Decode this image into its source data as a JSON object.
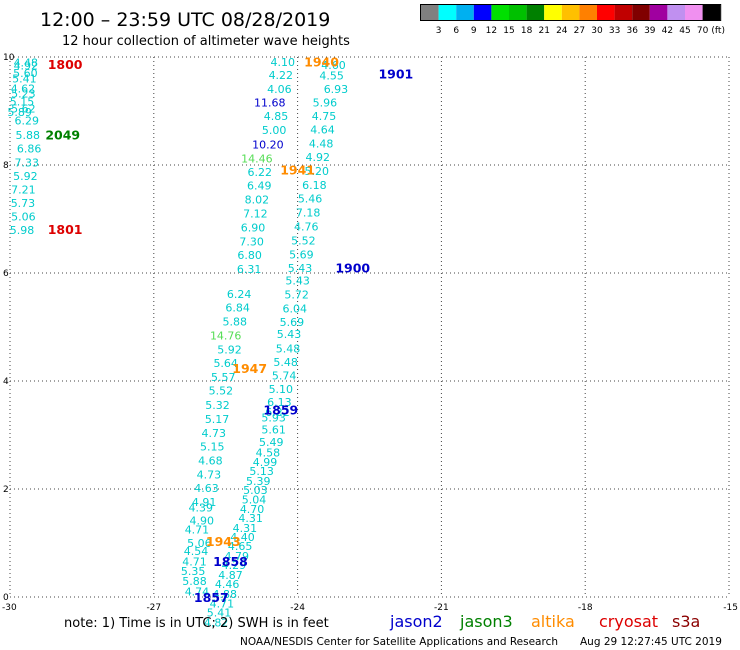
{
  "header": {
    "title": "12:00  –  23:59 UTC 08/28/2019",
    "subtitle": "12 hour collection of altimeter wave heights"
  },
  "colorbar": {
    "labels": [
      "3",
      "6",
      "9",
      "12",
      "15",
      "18",
      "21",
      "24",
      "27",
      "30",
      "33",
      "36",
      "39",
      "42",
      "45",
      "70"
    ],
    "unit": "(ft)",
    "colors": [
      "#808080",
      "#00ffff",
      "#00b0f0",
      "#0000ff",
      "#00e000",
      "#00c000",
      "#008000",
      "#ffff00",
      "#ffc000",
      "#ff8000",
      "#ff0000",
      "#c00000",
      "#800000",
      "#a000a0",
      "#c090f0",
      "#f090f0",
      "#000000"
    ]
  },
  "footer": {
    "note": "note:  1) Time is in UTC;  2) SWH is in feet",
    "satellites": [
      {
        "name": "jason2",
        "color": "#0000cc"
      },
      {
        "name": "jason3",
        "color": "#008000"
      },
      {
        "name": "altika",
        "color": "#ff8c00"
      },
      {
        "name": "cryosat",
        "color": "#dd0000"
      },
      {
        "name": "s3a",
        "color": "#8b0000"
      }
    ],
    "credit": "NOAA/NESDIS Center for Satellite Applications and Research",
    "timestamp": "Aug 29 12:27:45 UTC 2019"
  },
  "chart_data": {
    "type": "scatter",
    "xlim": [
      -30,
      -15
    ],
    "ylim": [
      0,
      10
    ],
    "xticks": [
      "-30",
      "-27",
      "-24",
      "-21",
      "-18",
      "-15"
    ],
    "xtick_values": [
      -30,
      -27,
      -24,
      -21,
      -18,
      -15
    ],
    "yticks": [
      "0",
      "2",
      "4",
      "6",
      "8",
      "10"
    ],
    "ytick_values": [
      0,
      2,
      4,
      6,
      8,
      10
    ],
    "grid": true,
    "gridlines": "dotted",
    "points": [
      {
        "x": -29.67,
        "y": 9.9,
        "label": "4.48",
        "color": "#00cccc"
      },
      {
        "x": -29.67,
        "y": 9.84,
        "label": "4.92",
        "color": "#00cccc"
      },
      {
        "x": -29.68,
        "y": 9.7,
        "label": "5.60",
        "color": "#00cccc"
      },
      {
        "x": -29.7,
        "y": 9.6,
        "label": "5.41",
        "color": "#00cccc"
      },
      {
        "x": -29.73,
        "y": 9.42,
        "label": "4.62",
        "color": "#00cccc"
      },
      {
        "x": -29.72,
        "y": 9.32,
        "label": "5.23",
        "color": "#00cccc"
      },
      {
        "x": -29.75,
        "y": 9.18,
        "label": "5.15",
        "color": "#00cccc"
      },
      {
        "x": -29.72,
        "y": 9.05,
        "label": "5.62",
        "color": "#00cccc"
      },
      {
        "x": -29.8,
        "y": 8.98,
        "label": "5.89",
        "color": "#00cccc"
      },
      {
        "x": -29.65,
        "y": 8.82,
        "label": "6.29",
        "color": "#00cccc"
      },
      {
        "x": -29.63,
        "y": 8.56,
        "label": "5.88",
        "color": "#00cccc"
      },
      {
        "x": -29.6,
        "y": 8.31,
        "label": "6.86",
        "color": "#00cccc"
      },
      {
        "x": -29.65,
        "y": 8.05,
        "label": "7.33",
        "color": "#00cccc"
      },
      {
        "x": -29.68,
        "y": 7.8,
        "label": "5.92",
        "color": "#00cccc"
      },
      {
        "x": -29.72,
        "y": 7.55,
        "label": "7.21",
        "color": "#00cccc"
      },
      {
        "x": -29.73,
        "y": 7.3,
        "label": "5.73",
        "color": "#00cccc"
      },
      {
        "x": -29.72,
        "y": 7.05,
        "label": "5.06",
        "color": "#00cccc"
      },
      {
        "x": -29.75,
        "y": 6.8,
        "label": "5.98",
        "color": "#00cccc"
      },
      {
        "x": -24.31,
        "y": 9.91,
        "label": "4.10",
        "color": "#00cccc"
      },
      {
        "x": -24.35,
        "y": 9.67,
        "label": "4.22",
        "color": "#00cccc"
      },
      {
        "x": -24.38,
        "y": 9.41,
        "label": "4.06",
        "color": "#00cccc"
      },
      {
        "x": -24.58,
        "y": 9.16,
        "label": "11.68",
        "color": "#0000cc"
      },
      {
        "x": -24.45,
        "y": 8.91,
        "label": "4.85",
        "color": "#00cccc"
      },
      {
        "x": -24.49,
        "y": 8.65,
        "label": "5.00",
        "color": "#00cccc"
      },
      {
        "x": -24.62,
        "y": 8.38,
        "label": "10.20",
        "color": "#0000cc"
      },
      {
        "x": -24.85,
        "y": 8.12,
        "label": "14.46",
        "color": "#55dd55"
      },
      {
        "x": -24.79,
        "y": 7.87,
        "label": "6.22",
        "color": "#00cccc"
      },
      {
        "x": -24.8,
        "y": 7.62,
        "label": "6.49",
        "color": "#00cccc"
      },
      {
        "x": -24.85,
        "y": 7.36,
        "label": "8.02",
        "color": "#00cccc"
      },
      {
        "x": -24.88,
        "y": 7.1,
        "label": "7.12",
        "color": "#00cccc"
      },
      {
        "x": -24.93,
        "y": 6.84,
        "label": "6.90",
        "color": "#00cccc"
      },
      {
        "x": -24.96,
        "y": 6.58,
        "label": "7.30",
        "color": "#00cccc"
      },
      {
        "x": -25.0,
        "y": 6.33,
        "label": "6.80",
        "color": "#00cccc"
      },
      {
        "x": -25.01,
        "y": 6.07,
        "label": "6.31",
        "color": "#00cccc"
      },
      {
        "x": -25.22,
        "y": 5.61,
        "label": "6.24",
        "color": "#00cccc"
      },
      {
        "x": -25.25,
        "y": 5.36,
        "label": "6.84",
        "color": "#00cccc"
      },
      {
        "x": -25.31,
        "y": 5.1,
        "label": "5.88",
        "color": "#00cccc"
      },
      {
        "x": -25.5,
        "y": 4.84,
        "label": "14.76",
        "color": "#55dd55"
      },
      {
        "x": -25.42,
        "y": 4.58,
        "label": "5.92",
        "color": "#00cccc"
      },
      {
        "x": -25.5,
        "y": 4.33,
        "label": "5.64",
        "color": "#00cccc"
      },
      {
        "x": -25.55,
        "y": 4.07,
        "label": "5.57",
        "color": "#00cccc"
      },
      {
        "x": -25.6,
        "y": 3.82,
        "label": "5.52",
        "color": "#00cccc"
      },
      {
        "x": -25.67,
        "y": 3.56,
        "label": "5.32",
        "color": "#00cccc"
      },
      {
        "x": -25.68,
        "y": 3.3,
        "label": "5.17",
        "color": "#00cccc"
      },
      {
        "x": -25.75,
        "y": 3.04,
        "label": "4.73",
        "color": "#00cccc"
      },
      {
        "x": -25.78,
        "y": 2.79,
        "label": "5.15",
        "color": "#00cccc"
      },
      {
        "x": -25.82,
        "y": 2.53,
        "label": "4.68",
        "color": "#00cccc"
      },
      {
        "x": -25.85,
        "y": 2.27,
        "label": "4.73",
        "color": "#00cccc"
      },
      {
        "x": -25.9,
        "y": 2.02,
        "label": "4.63",
        "color": "#00cccc"
      },
      {
        "x": -25.95,
        "y": 1.76,
        "label": "4.91",
        "color": "#00cccc"
      },
      {
        "x": -26.02,
        "y": 1.66,
        "label": "4.39",
        "color": "#00cccc"
      },
      {
        "x": -26.0,
        "y": 1.42,
        "label": "4.90",
        "color": "#00cccc"
      },
      {
        "x": -26.1,
        "y": 1.25,
        "label": "4.71",
        "color": "#00cccc"
      },
      {
        "x": -26.05,
        "y": 1.0,
        "label": "5.06",
        "color": "#00cccc"
      },
      {
        "x": -26.12,
        "y": 0.85,
        "label": "4.54",
        "color": "#00cccc"
      },
      {
        "x": -26.15,
        "y": 0.66,
        "label": "4.71",
        "color": "#00cccc"
      },
      {
        "x": -26.18,
        "y": 0.48,
        "label": "5.35",
        "color": "#00cccc"
      },
      {
        "x": -26.15,
        "y": 0.3,
        "label": "5.88",
        "color": "#00cccc"
      },
      {
        "x": -26.1,
        "y": 0.1,
        "label": "4.74",
        "color": "#00cccc"
      },
      {
        "x": -23.25,
        "y": 9.85,
        "label": "4.60",
        "color": "#00cccc"
      },
      {
        "x": -23.29,
        "y": 9.66,
        "label": "4.55",
        "color": "#00cccc"
      },
      {
        "x": -23.2,
        "y": 9.41,
        "label": "6.93",
        "color": "#00cccc"
      },
      {
        "x": -23.43,
        "y": 9.16,
        "label": "5.96",
        "color": "#00cccc"
      },
      {
        "x": -23.45,
        "y": 8.91,
        "label": "4.75",
        "color": "#00cccc"
      },
      {
        "x": -23.48,
        "y": 8.66,
        "label": "4.64",
        "color": "#00cccc"
      },
      {
        "x": -23.51,
        "y": 8.4,
        "label": "4.48",
        "color": "#00cccc"
      },
      {
        "x": -23.58,
        "y": 8.15,
        "label": "4.92",
        "color": "#00cccc"
      },
      {
        "x": -23.6,
        "y": 7.89,
        "label": "5.20",
        "color": "#00cccc"
      },
      {
        "x": -23.65,
        "y": 7.63,
        "label": "6.18",
        "color": "#00cccc"
      },
      {
        "x": -23.74,
        "y": 7.38,
        "label": "5.46",
        "color": "#00cccc"
      },
      {
        "x": -23.78,
        "y": 7.12,
        "label": "7.18",
        "color": "#00cccc"
      },
      {
        "x": -23.82,
        "y": 6.86,
        "label": "4.76",
        "color": "#00cccc"
      },
      {
        "x": -23.88,
        "y": 6.6,
        "label": "5.52",
        "color": "#00cccc"
      },
      {
        "x": -23.92,
        "y": 6.34,
        "label": "5.69",
        "color": "#00cccc"
      },
      {
        "x": -23.95,
        "y": 6.09,
        "label": "5.43",
        "color": "#00cccc"
      },
      {
        "x": -24.0,
        "y": 5.86,
        "label": "5.43",
        "color": "#00cccc"
      },
      {
        "x": -24.02,
        "y": 5.6,
        "label": "5.72",
        "color": "#00cccc"
      },
      {
        "x": -24.06,
        "y": 5.34,
        "label": "6.04",
        "color": "#00cccc"
      },
      {
        "x": -24.12,
        "y": 5.09,
        "label": "5.69",
        "color": "#00cccc"
      },
      {
        "x": -24.18,
        "y": 4.87,
        "label": "5.43",
        "color": "#00cccc"
      },
      {
        "x": -24.2,
        "y": 4.6,
        "label": "5.48",
        "color": "#00cccc"
      },
      {
        "x": -24.25,
        "y": 4.35,
        "label": "5.48",
        "color": "#00cccc"
      },
      {
        "x": -24.28,
        "y": 4.1,
        "label": "5.74",
        "color": "#00cccc"
      },
      {
        "x": -24.35,
        "y": 3.85,
        "label": "5.10",
        "color": "#00cccc"
      },
      {
        "x": -24.38,
        "y": 3.61,
        "label": "6.13",
        "color": "#00cccc"
      },
      {
        "x": -24.42,
        "y": 3.43,
        "label": "6.22",
        "color": "#00cccc"
      },
      {
        "x": -24.5,
        "y": 3.32,
        "label": "5.93",
        "color": "#00cccc"
      },
      {
        "x": -24.5,
        "y": 3.1,
        "label": "5.61",
        "color": "#00cccc"
      },
      {
        "x": -24.55,
        "y": 2.87,
        "label": "5.49",
        "color": "#00cccc"
      },
      {
        "x": -24.62,
        "y": 2.68,
        "label": "4.58",
        "color": "#00cccc"
      },
      {
        "x": -24.68,
        "y": 2.5,
        "label": "4.99",
        "color": "#00cccc"
      },
      {
        "x": -24.75,
        "y": 2.33,
        "label": "5.13",
        "color": "#00cccc"
      },
      {
        "x": -24.82,
        "y": 2.15,
        "label": "5.39",
        "color": "#00cccc"
      },
      {
        "x": -24.88,
        "y": 1.98,
        "label": "5.03",
        "color": "#00cccc"
      },
      {
        "x": -24.91,
        "y": 1.81,
        "label": "5.04",
        "color": "#00cccc"
      },
      {
        "x": -24.95,
        "y": 1.63,
        "label": "4.70",
        "color": "#00cccc"
      },
      {
        "x": -24.98,
        "y": 1.46,
        "label": "4.31",
        "color": "#00cccc"
      },
      {
        "x": -25.1,
        "y": 1.28,
        "label": "4.31",
        "color": "#00cccc"
      },
      {
        "x": -25.15,
        "y": 1.11,
        "label": "4.40",
        "color": "#00cccc"
      },
      {
        "x": -25.2,
        "y": 0.94,
        "label": "4.65",
        "color": "#00cccc"
      },
      {
        "x": -25.27,
        "y": 0.76,
        "label": "4.79",
        "color": "#00cccc"
      },
      {
        "x": -25.33,
        "y": 0.59,
        "label": "4.29",
        "color": "#00cccc"
      },
      {
        "x": -25.4,
        "y": 0.41,
        "label": "4.87",
        "color": "#00cccc"
      },
      {
        "x": -25.47,
        "y": 0.24,
        "label": "4.46",
        "color": "#00cccc"
      },
      {
        "x": -25.52,
        "y": 0.06,
        "label": "4.88",
        "color": "#00cccc"
      },
      {
        "x": -25.58,
        "y": -0.12,
        "label": "4.71",
        "color": "#00cccc"
      },
      {
        "x": -25.64,
        "y": -0.29,
        "label": "5.41",
        "color": "#00cccc"
      },
      {
        "x": -25.7,
        "y": -0.47,
        "label": "4.82",
        "color": "#00cccc"
      }
    ],
    "pass_labels": [
      {
        "x": -28.85,
        "y": 9.85,
        "label": "1800",
        "color": "#dd0000"
      },
      {
        "x": -28.9,
        "y": 8.55,
        "label": "2049",
        "color": "#008000"
      },
      {
        "x": -28.85,
        "y": 6.8,
        "label": "1801",
        "color": "#dd0000"
      },
      {
        "x": -23.5,
        "y": 9.9,
        "label": "1940",
        "color": "#ff8c00"
      },
      {
        "x": -21.95,
        "y": 9.68,
        "label": "1901",
        "color": "#0000cc"
      },
      {
        "x": -24.0,
        "y": 7.9,
        "label": "1941",
        "color": "#ff8c00"
      },
      {
        "x": -22.85,
        "y": 6.08,
        "label": "1900",
        "color": "#0000cc"
      },
      {
        "x": -25.0,
        "y": 4.22,
        "label": "1947",
        "color": "#ff8c00"
      },
      {
        "x": -24.35,
        "y": 3.45,
        "label": "1859",
        "color": "#0000cc"
      },
      {
        "x": -25.55,
        "y": 1.02,
        "label": "1943",
        "color": "#ff8c00"
      },
      {
        "x": -25.4,
        "y": 0.65,
        "label": "1858",
        "color": "#0000cc"
      },
      {
        "x": -25.8,
        "y": -0.02,
        "label": "1857",
        "color": "#0000cc"
      }
    ]
  }
}
